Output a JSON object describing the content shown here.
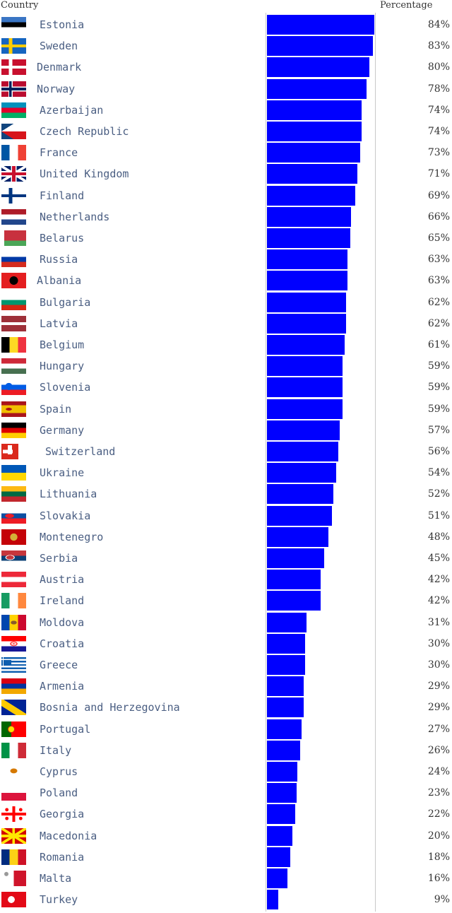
{
  "headers": {
    "country": "Country",
    "percentage": "Percentage"
  },
  "chart_data": {
    "type": "bar",
    "orientation": "horizontal",
    "title": "",
    "xlabel": "Percentage",
    "ylabel": "Country",
    "xlim": [
      0,
      100
    ],
    "bar_color": "#0000ff",
    "categories": [
      "Estonia",
      "Sweden",
      "Denmark",
      "Norway",
      "Azerbaijan",
      "Czech Republic",
      "France",
      "United Kingdom",
      "Finland",
      "Netherlands",
      "Belarus",
      "Russia",
      "Albania",
      "Bulgaria",
      "Latvia",
      "Belgium",
      "Hungary",
      "Slovenia",
      "Spain",
      "Germany",
      "Switzerland",
      "Ukraine",
      "Lithuania",
      "Slovakia",
      "Montenegro",
      "Serbia",
      "Austria",
      "Ireland",
      "Moldova",
      "Croatia",
      "Greece",
      "Armenia",
      "Bosnia and Herzegovina",
      "Portugal",
      "Italy",
      "Cyprus",
      "Poland",
      "Georgia",
      "Macedonia",
      "Romania",
      "Malta",
      "Turkey"
    ],
    "values": [
      84,
      83,
      80,
      78,
      74,
      74,
      73,
      71,
      69,
      66,
      65,
      63,
      63,
      62,
      62,
      61,
      59,
      59,
      59,
      57,
      56,
      54,
      52,
      51,
      48,
      45,
      42,
      42,
      31,
      30,
      30,
      29,
      29,
      27,
      26,
      24,
      23,
      22,
      20,
      18,
      16,
      9
    ],
    "labels": [
      "84%",
      "83%",
      "80%",
      "78%",
      "74%",
      "74%",
      "73%",
      "71%",
      "69%",
      "66%",
      "65%",
      "63%",
      "63%",
      "62%",
      "62%",
      "61%",
      "59%",
      "59%",
      "59%",
      "57%",
      "56%",
      "54%",
      "52%",
      "51%",
      "48%",
      "45%",
      "42%",
      "42%",
      "31%",
      "30%",
      "30%",
      "29%",
      "29%",
      "27%",
      "26%",
      "24%",
      "23%",
      "22%",
      "20%",
      "18%",
      "16%",
      "9%"
    ],
    "flag_icons": [
      "estonia-flag-icon",
      "sweden-flag-icon",
      "denmark-flag-icon",
      "norway-flag-icon",
      "azerbaijan-flag-icon",
      "czech-republic-flag-icon",
      "france-flag-icon",
      "united-kingdom-flag-icon",
      "finland-flag-icon",
      "netherlands-flag-icon",
      "belarus-flag-icon",
      "russia-flag-icon",
      "albania-flag-icon",
      "bulgaria-flag-icon",
      "latvia-flag-icon",
      "belgium-flag-icon",
      "hungary-flag-icon",
      "slovenia-flag-icon",
      "spain-flag-icon",
      "germany-flag-icon",
      "switzerland-flag-icon",
      "ukraine-flag-icon",
      "lithuania-flag-icon",
      "slovakia-flag-icon",
      "montenegro-flag-icon",
      "serbia-flag-icon",
      "austria-flag-icon",
      "ireland-flag-icon",
      "moldova-flag-icon",
      "croatia-flag-icon",
      "greece-flag-icon",
      "armenia-flag-icon",
      "bosnia-flag-icon",
      "portugal-flag-icon",
      "italy-flag-icon",
      "cyprus-flag-icon",
      "poland-flag-icon",
      "georgia-flag-icon",
      "macedonia-flag-icon",
      "romania-flag-icon",
      "malta-flag-icon",
      "turkey-flag-icon"
    ]
  }
}
